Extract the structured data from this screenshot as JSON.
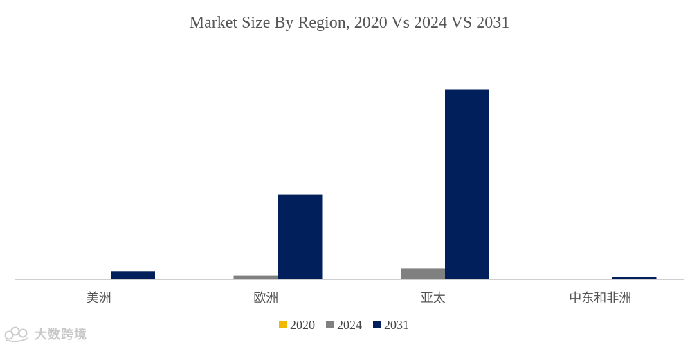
{
  "chart_data": {
    "type": "bar",
    "title": "Market Size By Region, 2020 Vs 2024 VS 2031",
    "categories": [
      "美洲",
      "欧洲",
      "亚太",
      "中东和非洲"
    ],
    "series": [
      {
        "name": "2020",
        "color": "#F0B800",
        "values": [
          0,
          0,
          0,
          0
        ]
      },
      {
        "name": "2024",
        "color": "#808080",
        "values": [
          0,
          1.8,
          5.2,
          0
        ]
      },
      {
        "name": "2031",
        "color": "#001F5B",
        "values": [
          3.9,
          40.8,
          91.5,
          1.0
        ]
      }
    ],
    "ylim": [
      0,
      100
    ],
    "grid": false,
    "legend": "bottom-center",
    "xlabel": "",
    "ylabel": ""
  },
  "watermark": {
    "text": "大数跨境",
    "icon": "logo-icon"
  }
}
